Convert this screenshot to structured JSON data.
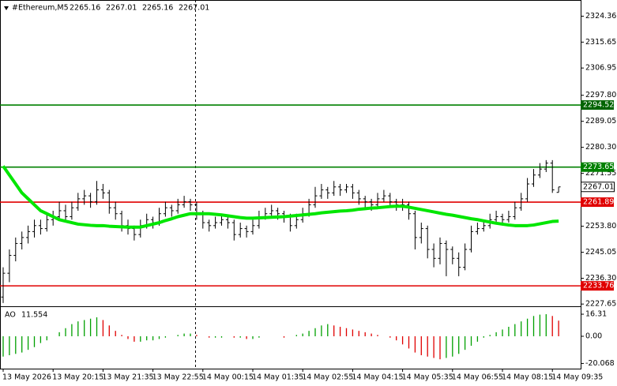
{
  "chart_data": [
    {
      "type": "candlestick",
      "header": {
        "symbol": "#Ethereum,M5"
      },
      "categories": [
        "13 May 2026",
        null,
        null,
        null,
        null,
        null,
        null,
        null,
        "13 May 20:15",
        null,
        null,
        null,
        null,
        null,
        null,
        null,
        "13 May 21:35",
        null,
        null,
        null,
        null,
        null,
        null,
        null,
        "13 May 22:55",
        null,
        null,
        null,
        null,
        null,
        null,
        null,
        "14 May 00:15",
        null,
        null,
        null,
        null,
        null,
        null,
        null,
        "14 May 01:35",
        null,
        null,
        null,
        null,
        null,
        null,
        null,
        "14 May 02:55",
        null,
        null,
        null,
        null,
        null,
        null,
        null,
        "14 May 04:15",
        null,
        null,
        null,
        null,
        null,
        null,
        null,
        "14 May 05:35",
        null,
        null,
        null,
        null,
        null,
        null,
        null,
        "14 May 06:55",
        null,
        null,
        null,
        null,
        null,
        null,
        null,
        "14 May 08:15",
        null,
        null,
        null,
        null,
        null,
        null,
        null,
        "14 May 09:35",
        null
      ],
      "values": [
        [
          2230,
          2240,
          2228,
          2238
        ],
        [
          2238,
          2246,
          2235,
          2244
        ],
        [
          2244,
          2250,
          2242,
          2248
        ],
        [
          2248,
          2252,
          2246,
          2250
        ],
        [
          2250,
          2254,
          2248,
          2252
        ],
        [
          2252,
          2256,
          2250,
          2254
        ],
        [
          2254,
          2256,
          2251,
          2253
        ],
        [
          2253,
          2258,
          2252,
          2256
        ],
        [
          2256,
          2259,
          2254,
          2257
        ],
        [
          2257,
          2262,
          2256,
          2259
        ],
        [
          2259,
          2261,
          2255,
          2257
        ],
        [
          2257,
          2262,
          2256,
          2260
        ],
        [
          2260,
          2265,
          2259,
          2263
        ],
        [
          2263,
          2266,
          2261,
          2264
        ],
        [
          2264,
          2265,
          2260,
          2262
        ],
        [
          2262,
          2269,
          2261,
          2266
        ],
        [
          2266,
          2268,
          2263,
          2265
        ],
        [
          2265,
          2266,
          2258,
          2260
        ],
        [
          2260,
          2262,
          2256,
          2258
        ],
        [
          2258,
          2259,
          2252,
          2254
        ],
        [
          2254,
          2256,
          2251,
          2253
        ],
        [
          2253,
          2254,
          2249,
          2251
        ],
        [
          2251,
          2256,
          2250,
          2254
        ],
        [
          2254,
          2258,
          2253,
          2256
        ],
        [
          2256,
          2257,
          2253,
          2255
        ],
        [
          2255,
          2260,
          2254,
          2258
        ],
        [
          2258,
          2262,
          2257,
          2260
        ],
        [
          2260,
          2261,
          2257,
          2259
        ],
        [
          2259,
          2263,
          2258,
          2261
        ],
        [
          2261,
          2264,
          2260,
          2262
        ],
        [
          2262,
          2263,
          2259,
          2261
        ],
        [
          2261,
          2262,
          2256,
          2258
        ],
        [
          2258,
          2259,
          2253,
          2255
        ],
        [
          2255,
          2256,
          2252,
          2254
        ],
        [
          2254,
          2257,
          2253,
          2255
        ],
        [
          2255,
          2258,
          2254,
          2256
        ],
        [
          2256,
          2257,
          2253,
          2255
        ],
        [
          2255,
          2256,
          2249,
          2251
        ],
        [
          2251,
          2255,
          2250,
          2253
        ],
        [
          2253,
          2254,
          2250,
          2252
        ],
        [
          2252,
          2256,
          2251,
          2254
        ],
        [
          2254,
          2259,
          2253,
          2257
        ],
        [
          2257,
          2260,
          2256,
          2258
        ],
        [
          2258,
          2261,
          2257,
          2259
        ],
        [
          2259,
          2260,
          2256,
          2258
        ],
        [
          2258,
          2259,
          2255,
          2257
        ],
        [
          2257,
          2258,
          2252,
          2254
        ],
        [
          2254,
          2258,
          2253,
          2256
        ],
        [
          2256,
          2260,
          2255,
          2258
        ],
        [
          2258,
          2263,
          2257,
          2261
        ],
        [
          2261,
          2267,
          2260,
          2264
        ],
        [
          2264,
          2268,
          2263,
          2266
        ],
        [
          2266,
          2267,
          2263,
          2265
        ],
        [
          2265,
          2269,
          2264,
          2267
        ],
        [
          2267,
          2268,
          2264,
          2266
        ],
        [
          2266,
          2268,
          2265,
          2267
        ],
        [
          2267,
          2268,
          2263,
          2265
        ],
        [
          2265,
          2266,
          2261,
          2263
        ],
        [
          2263,
          2264,
          2260,
          2262
        ],
        [
          2262,
          2263,
          2259,
          2261
        ],
        [
          2261,
          2265,
          2260,
          2263
        ],
        [
          2263,
          2266,
          2262,
          2264
        ],
        [
          2264,
          2265,
          2260,
          2262
        ],
        [
          2262,
          2263,
          2259,
          2261
        ],
        [
          2261,
          2263,
          2259,
          2261
        ],
        [
          2261,
          2262,
          2256,
          2258
        ],
        [
          2258,
          2259,
          2246,
          2250
        ],
        [
          2250,
          2255,
          2248,
          2253
        ],
        [
          2253,
          2254,
          2243,
          2246
        ],
        [
          2246,
          2248,
          2240,
          2243
        ],
        [
          2243,
          2250,
          2241,
          2248
        ],
        [
          2248,
          2249,
          2237,
          2246
        ],
        [
          2246,
          2247,
          2241,
          2243
        ],
        [
          2243,
          2245,
          2237,
          2240
        ],
        [
          2240,
          2248,
          2239,
          2246
        ],
        [
          2246,
          2254,
          2245,
          2252
        ],
        [
          2252,
          2255,
          2251,
          2253
        ],
        [
          2253,
          2256,
          2252,
          2254
        ],
        [
          2254,
          2258,
          2253,
          2256
        ],
        [
          2256,
          2259,
          2255,
          2257
        ],
        [
          2257,
          2258,
          2254,
          2256
        ],
        [
          2256,
          2259,
          2255,
          2257
        ],
        [
          2257,
          2262,
          2256,
          2260
        ],
        [
          2260,
          2265,
          2259,
          2263
        ],
        [
          2263,
          2270,
          2262,
          2268
        ],
        [
          2268,
          2273,
          2267,
          2271
        ],
        [
          2271,
          2275,
          2270,
          2273
        ],
        [
          2273,
          2276,
          2272,
          2275
        ],
        [
          2275,
          2276,
          2265,
          2266
        ],
        [
          2265.16,
          2267.01,
          2265.16,
          2267.01
        ]
      ],
      "color": "#000000",
      "moving_average": {
        "color": "#00e600",
        "values": [
          2274,
          2271,
          2268,
          2265,
          2263,
          2261,
          2259,
          2258,
          2257,
          2256,
          2255.5,
          2255,
          2254.5,
          2254.3,
          2254.1,
          2254,
          2254,
          2253.8,
          2253.7,
          2253.6,
          2253.5,
          2253.5,
          2253.5,
          2254,
          2254.5,
          2255,
          2255.7,
          2256.3,
          2257,
          2257.5,
          2258,
          2258,
          2258,
          2258,
          2257.8,
          2257.6,
          2257.3,
          2257,
          2256.7,
          2256.5,
          2256.5,
          2256.6,
          2256.7,
          2256.8,
          2256.9,
          2257,
          2257.2,
          2257.4,
          2257.6,
          2257.8,
          2258,
          2258.3,
          2258.5,
          2258.7,
          2258.9,
          2259,
          2259.2,
          2259.5,
          2259.7,
          2259.9,
          2260,
          2260.2,
          2260.4,
          2260.5,
          2260.5,
          2260.2,
          2259.8,
          2259.4,
          2259,
          2258.6,
          2258.2,
          2257.8,
          2257.5,
          2257.1,
          2256.7,
          2256.3,
          2256,
          2255.6,
          2255.2,
          2254.8,
          2254.5,
          2254.2,
          2254,
          2254,
          2254,
          2254.2,
          2254.6,
          2255,
          2255.4,
          2255.5
        ]
      },
      "levels": [
        {
          "value": 2294.52,
          "color": "#008000",
          "label_color": "#006400"
        },
        {
          "value": 2273.65,
          "color": "#008000",
          "label_color": "#008000"
        },
        {
          "value": 2261.89,
          "color": "#e00000",
          "label_color": "#e00000"
        },
        {
          "value": 2233.76,
          "color": "#e00000",
          "label_color": "#e00000"
        }
      ],
      "ylim": [
        2226.9,
        2329.8
      ],
      "yticks": [
        2324.36,
        2315.65,
        2306.95,
        {
          "value": 2297.8,
          "label": "2297.80"
        },
        2289.05,
        {
          "value": 2280.3,
          "label": "2280.30"
        },
        2271.55,
        {
          "value": 2253.8,
          "label": "2253.80"
        },
        2245.05,
        {
          "value": 2236.3,
          "label": "2236.30"
        },
        2227.65
      ]
    },
    {
      "type": "bar",
      "name": "AO",
      "values": [
        -15,
        -14,
        -13,
        -12,
        -10,
        -8,
        -5,
        -3,
        0,
        3,
        6,
        9,
        11,
        12,
        13,
        14,
        12,
        8,
        4,
        1,
        -2,
        -4,
        -4,
        -3,
        -3,
        -2,
        -1,
        0,
        1,
        2,
        2,
        1,
        0,
        -1,
        -1,
        -1,
        0,
        -1,
        -1,
        -2,
        -2,
        -1,
        0,
        0,
        0,
        -1,
        0,
        1,
        2,
        4,
        6,
        8,
        9,
        8,
        7,
        6,
        5,
        4,
        3,
        2,
        1,
        0,
        -1,
        -3,
        -6,
        -9,
        -12,
        -14,
        -15,
        -16,
        -17,
        -16,
        -15,
        -13,
        -10,
        -7,
        -4,
        -1,
        1,
        3,
        5,
        7,
        9,
        11,
        13,
        15,
        16,
        16.31,
        15,
        11.554
      ],
      "up_color": "#00a000",
      "down_color": "#e00000",
      "ylim": [
        -23.9,
        21
      ],
      "yticks": [
        16.31,
        {
          "value": 0,
          "label": "0.00"
        },
        -20.068
      ]
    }
  ]
}
